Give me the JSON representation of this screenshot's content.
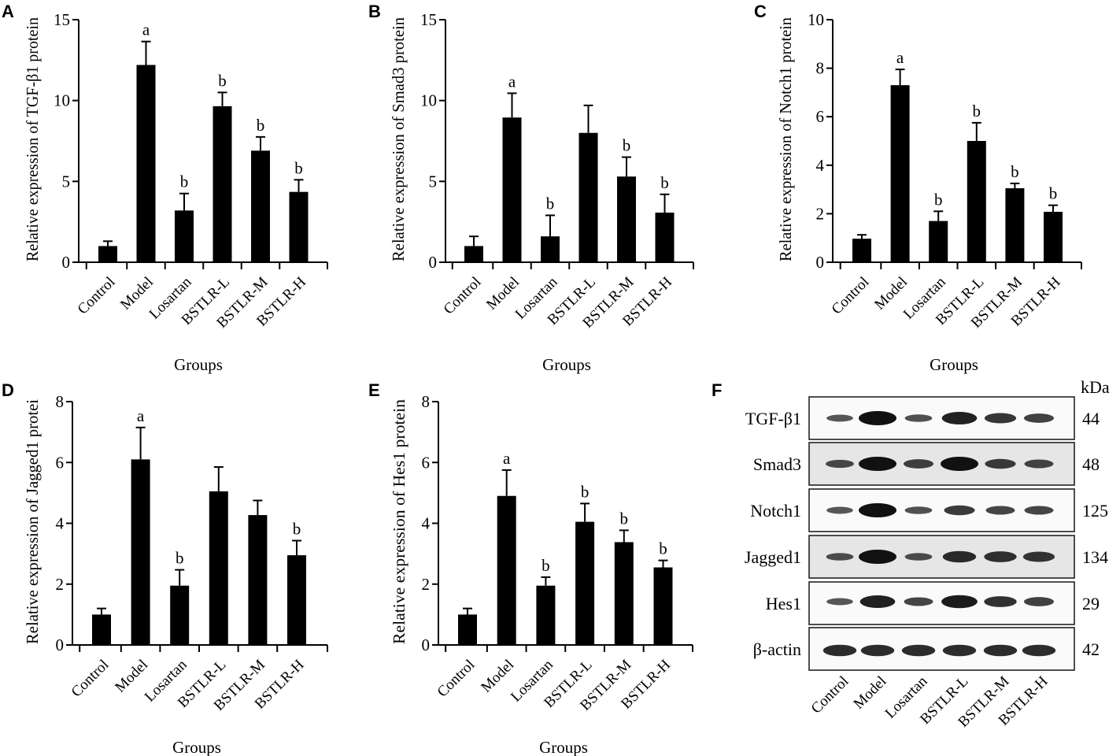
{
  "figure": {
    "groups_title": "Groups"
  },
  "chart_data": [
    {
      "type": "bar",
      "panel": "A",
      "title": "",
      "xlabel": "Groups",
      "ylabel": "Relative expression of TGF-β1 protein",
      "categories": [
        "Control",
        "Model",
        "Losartan",
        "BSTLR-L",
        "BSTLR-M",
        "BSTLR-H"
      ],
      "values": [
        1.0,
        12.2,
        3.2,
        9.65,
        6.9,
        4.35
      ],
      "error_upper": [
        1.3,
        13.65,
        4.25,
        10.5,
        7.75,
        5.1
      ],
      "significance": [
        "",
        "a",
        "b",
        "b",
        "b",
        "b"
      ],
      "ylim": [
        0,
        15
      ],
      "yticks": [
        0,
        5,
        10,
        15
      ],
      "ytick_labels": [
        "0",
        "5",
        "10",
        "15"
      ],
      "grid": false,
      "legend": "none"
    },
    {
      "type": "bar",
      "panel": "B",
      "title": "",
      "xlabel": "Groups",
      "ylabel": "Relative expression of Smad3 protein",
      "categories": [
        "Control",
        "Model",
        "Losartan",
        "BSTLR-L",
        "BSTLR-M",
        "BSTLR-H"
      ],
      "values": [
        1.0,
        8.95,
        1.6,
        8.0,
        5.3,
        3.07
      ],
      "error_upper": [
        1.6,
        10.45,
        2.9,
        9.7,
        6.5,
        4.2
      ],
      "significance": [
        "",
        "a",
        "b",
        "",
        "b",
        "b"
      ],
      "ylim": [
        0,
        15
      ],
      "yticks": [
        0,
        5,
        10,
        15
      ],
      "ytick_labels": [
        "0",
        "5",
        "10",
        "15"
      ],
      "grid": false,
      "legend": "none"
    },
    {
      "type": "bar",
      "panel": "C",
      "title": "",
      "xlabel": "Groups",
      "ylabel": "Relative expression of Notch1 protein",
      "categories": [
        "Control",
        "Model",
        "Losartan",
        "BSTLR-L",
        "BSTLR-M",
        "BSTLR-H"
      ],
      "values": [
        0.97,
        7.3,
        1.7,
        5.0,
        3.05,
        2.08
      ],
      "error_upper": [
        1.13,
        7.95,
        2.1,
        5.75,
        3.25,
        2.35
      ],
      "significance": [
        "",
        "a",
        "b",
        "b",
        "b",
        "b"
      ],
      "ylim": [
        0,
        10
      ],
      "yticks": [
        0,
        2,
        4,
        6,
        8,
        10
      ],
      "ytick_labels": [
        "0",
        "2",
        "4",
        "6",
        "8",
        "10"
      ],
      "grid": false,
      "legend": "none"
    },
    {
      "type": "bar",
      "panel": "D",
      "title": "",
      "xlabel": "Groups",
      "ylabel": "Relative expression of Jagged1 protei",
      "categories": [
        "Control",
        "Model",
        "Losartan",
        "BSTLR-L",
        "BSTLR-M",
        "BSTLR-H"
      ],
      "values": [
        1.0,
        6.1,
        1.95,
        5.05,
        4.27,
        2.95
      ],
      "error_upper": [
        1.2,
        7.15,
        2.47,
        5.85,
        4.75,
        3.43
      ],
      "significance": [
        "",
        "a",
        "b",
        "",
        "",
        "b"
      ],
      "ylim": [
        0,
        8
      ],
      "yticks": [
        0,
        2,
        4,
        6,
        8
      ],
      "ytick_labels": [
        "0",
        "2",
        "4",
        "6",
        "8"
      ],
      "grid": false,
      "legend": "none"
    },
    {
      "type": "bar",
      "panel": "E",
      "title": "",
      "xlabel": "Groups",
      "ylabel": "Relative expression of Hes1 protein",
      "categories": [
        "Control",
        "Model",
        "Losartan",
        "BSTLR-L",
        "BSTLR-M",
        "BSTLR-H"
      ],
      "values": [
        1.0,
        4.9,
        1.95,
        4.05,
        3.38,
        2.55
      ],
      "error_upper": [
        1.2,
        5.75,
        2.23,
        4.65,
        3.77,
        2.78
      ],
      "significance": [
        "",
        "a",
        "b",
        "b",
        "b",
        "b"
      ],
      "ylim": [
        0,
        8
      ],
      "yticks": [
        0,
        2,
        4,
        6,
        8
      ],
      "ytick_labels": [
        "0",
        "2",
        "4",
        "6",
        "8"
      ],
      "grid": false,
      "legend": "none"
    }
  ],
  "western_blot": {
    "panel": "F",
    "unit_label": "kDa",
    "lanes": [
      "Control",
      "Model",
      "Losartan",
      "BSTLR-L",
      "BSTLR-M",
      "BSTLR-H"
    ],
    "rows": [
      {
        "protein": "TGF-β1",
        "kda": "44",
        "grey": false,
        "intensity": [
          0.35,
          1.0,
          0.4,
          0.85,
          0.65,
          0.55
        ]
      },
      {
        "protein": "Smad3",
        "kda": "48",
        "grey": true,
        "intensity": [
          0.45,
          1.0,
          0.55,
          1.0,
          0.6,
          0.5
        ]
      },
      {
        "protein": "Notch1",
        "kda": "125",
        "grey": false,
        "intensity": [
          0.35,
          1.0,
          0.4,
          0.6,
          0.5,
          0.5
        ]
      },
      {
        "protein": "Jagged1",
        "kda": "134",
        "grey": true,
        "intensity": [
          0.4,
          1.0,
          0.4,
          0.75,
          0.7,
          0.65
        ]
      },
      {
        "protein": "Hes1",
        "kda": "29",
        "grey": false,
        "intensity": [
          0.35,
          0.85,
          0.5,
          0.9,
          0.7,
          0.55
        ]
      },
      {
        "protein": "β-actin",
        "kda": "42",
        "grey": false,
        "intensity": [
          0.75,
          0.75,
          0.75,
          0.75,
          0.75,
          0.75
        ]
      }
    ]
  }
}
